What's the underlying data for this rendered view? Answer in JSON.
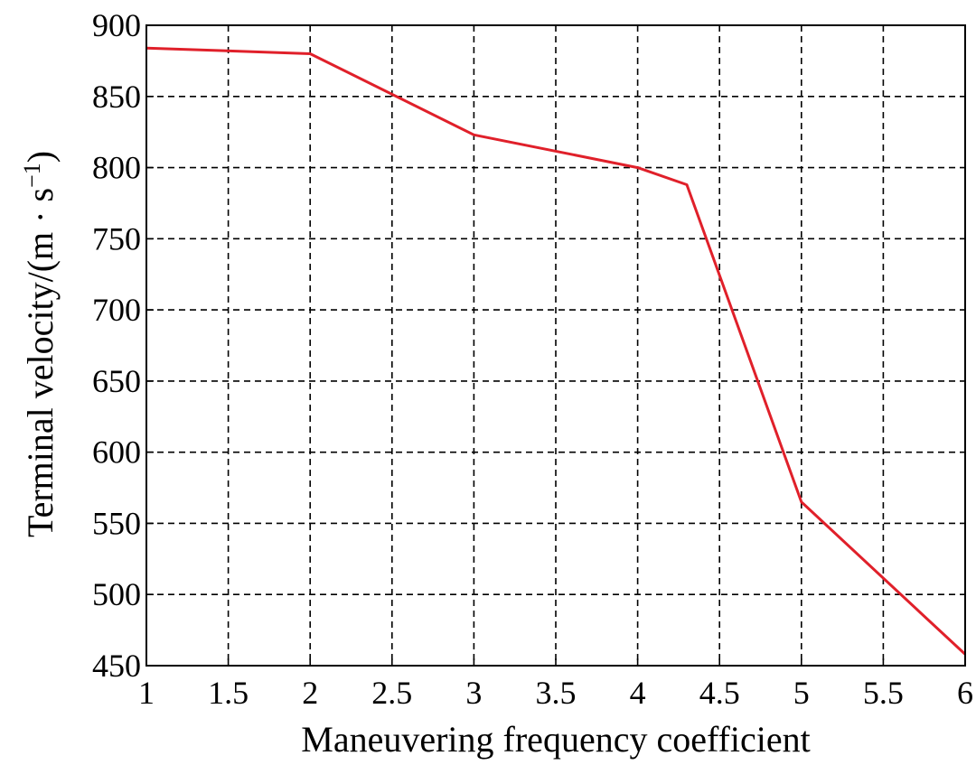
{
  "chart_data": {
    "type": "line",
    "xlabel": "Maneuvering frequency coefficient",
    "ylabel": "Terminal velocity/(m · s",
    "ylabel_sup": "−1",
    "ylabel_close": ")",
    "xlim": [
      1,
      6
    ],
    "ylim": [
      450,
      900
    ],
    "xticks": [
      1,
      1.5,
      2,
      2.5,
      3,
      3.5,
      4,
      4.5,
      5,
      5.5,
      6
    ],
    "xtick_labels": [
      "1",
      "1.5",
      "2",
      "2.5",
      "3",
      "3.5",
      "4",
      "4.5",
      "5",
      "5.5",
      "6"
    ],
    "yticks": [
      450,
      500,
      550,
      600,
      650,
      700,
      750,
      800,
      850,
      900
    ],
    "ytick_labels": [
      "450",
      "500",
      "550",
      "600",
      "650",
      "700",
      "750",
      "800",
      "850",
      "900"
    ],
    "grid": true,
    "series": [
      {
        "color": "#e0202a",
        "x": [
          1,
          2,
          3,
          4,
          4.3,
          5,
          6
        ],
        "y": [
          884,
          880,
          823,
          800,
          788,
          565,
          458
        ]
      }
    ]
  }
}
